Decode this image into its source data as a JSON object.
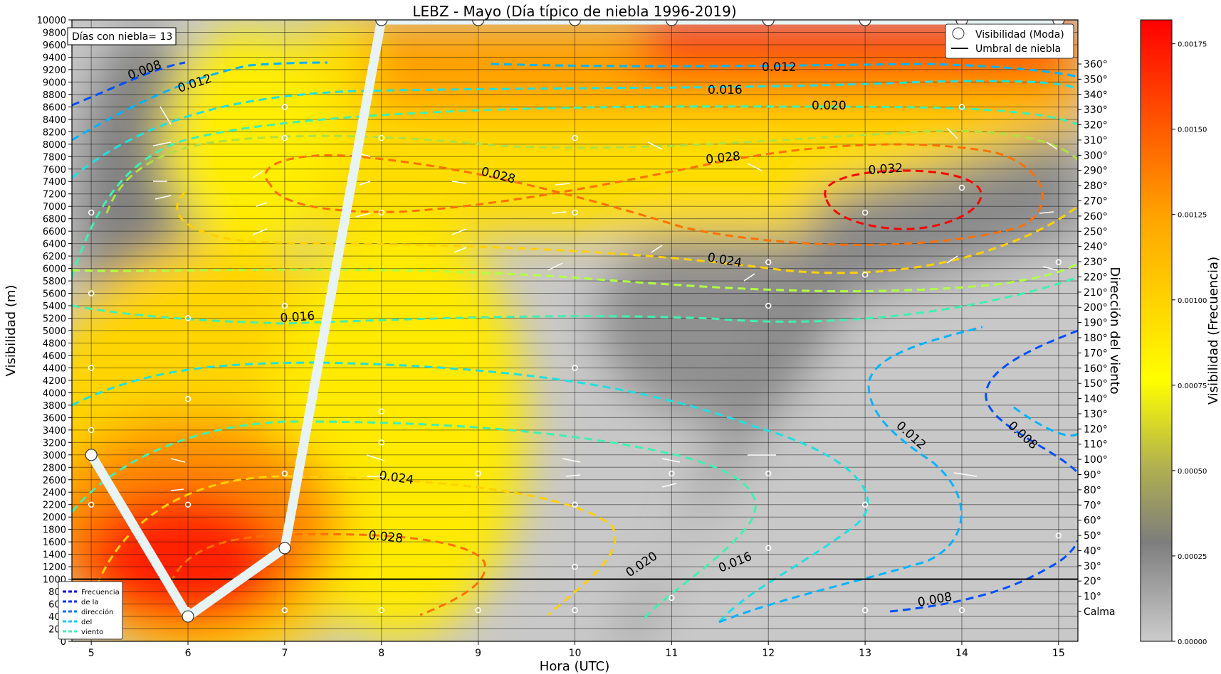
{
  "chart_data": {
    "type": "heatmap",
    "title": "LEBZ - Mayo (Día típico de niebla 1996-2019)",
    "xlabel": "Hora (UTC)",
    "ylabel": "Visibilidad (m)",
    "y2label": "Dirección del viento",
    "colorbar_label": "Visibilidad (Frecuencia)",
    "xlim": [
      4.8,
      15.2
    ],
    "ylim": [
      0,
      10000
    ],
    "x_ticks": [
      "5",
      "6",
      "7",
      "8",
      "9",
      "10",
      "11",
      "12",
      "13",
      "14",
      "15"
    ],
    "y_ticks": [
      "0",
      "200",
      "400",
      "600",
      "800",
      "1000",
      "1200",
      "1400",
      "1600",
      "1800",
      "2000",
      "2200",
      "2400",
      "2600",
      "2800",
      "3000",
      "3200",
      "3400",
      "3600",
      "3800",
      "4000",
      "4200",
      "4400",
      "4600",
      "4800",
      "5000",
      "5200",
      "5400",
      "5600",
      "5800",
      "6000",
      "6200",
      "6400",
      "6600",
      "6800",
      "7000",
      "7200",
      "7400",
      "7600",
      "7800",
      "8000",
      "8200",
      "8400",
      "8600",
      "8800",
      "9000",
      "9200",
      "9400",
      "9600",
      "9800",
      "10000"
    ],
    "y2_ticks": [
      "Calma",
      "10°",
      "20°",
      "30°",
      "40°",
      "50°",
      "60°",
      "70°",
      "80°",
      "90°",
      "100°",
      "110°",
      "120°",
      "130°",
      "140°",
      "150°",
      "160°",
      "170°",
      "180°",
      "190°",
      "200°",
      "210°",
      "220°",
      "230°",
      "240°",
      "250°",
      "260°",
      "270°",
      "280°",
      "290°",
      "300°",
      "310°",
      "320°",
      "330°",
      "340°",
      "350°",
      "360°"
    ],
    "colorbar_ticks": [
      "0.00000",
      "0.00025",
      "0.00050",
      "0.00075",
      "0.00100",
      "0.00125",
      "0.00150",
      "0.00175"
    ],
    "colorbar_range": [
      0,
      0.00182
    ],
    "colormap": [
      "#cccccc",
      "#7a7a7a",
      "#ffff00",
      "#ffa500",
      "#ff0000"
    ],
    "annotation": "Días con niebla= 13",
    "legend_main": {
      "placement": "top-right",
      "entries": [
        "Visibilidad (Moda)",
        "Umbral de niebla"
      ]
    },
    "legend_wind": {
      "placement": "lower-left",
      "entries": [
        "Frecuencia",
        "de  la",
        "dirección",
        "del",
        "viento"
      ],
      "colors": [
        "#0000dd",
        "#0030ee",
        "#0070ff",
        "#00c8ff",
        "#40f0b0"
      ]
    },
    "fog_threshold": 1000,
    "mode_series": {
      "name": "Visibilidad (Moda)",
      "x": [
        5,
        6,
        7,
        8,
        9,
        10,
        11,
        12,
        13,
        14,
        15
      ],
      "y": [
        3000,
        400,
        1500,
        10000,
        10000,
        10000,
        10000,
        10000,
        10000,
        10000,
        10000
      ]
    },
    "contour_labels": [
      "0.008",
      "0.012",
      "0.016",
      "0.020",
      "0.024",
      "0.028",
      "0.032"
    ],
    "contour_colors": {
      "0.008": "#0050ff",
      "0.012": "#00b4ff",
      "0.016": "#20e0e0",
      "0.020": "#b0ff40",
      "0.024": "#ffd000",
      "0.028": "#ff7000",
      "0.032": "#ff0000"
    }
  }
}
